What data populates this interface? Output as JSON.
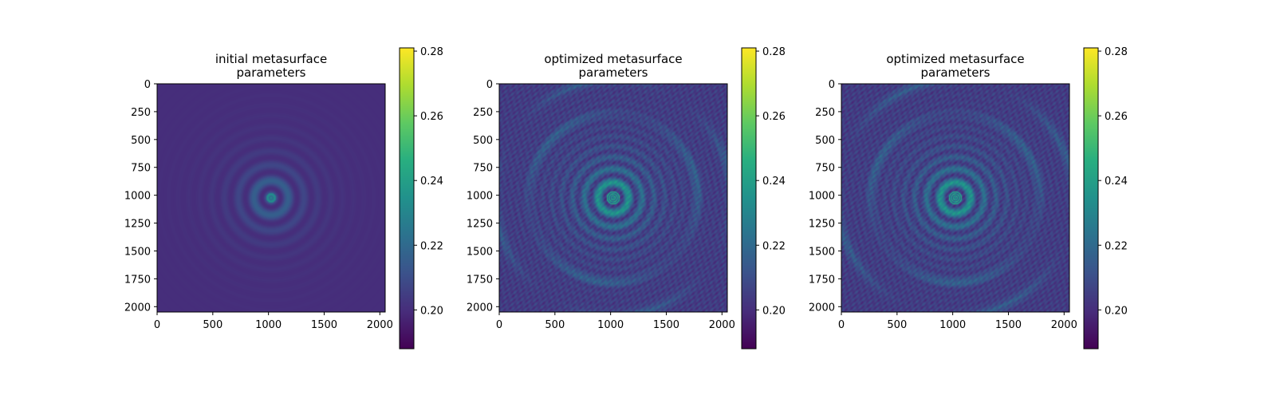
{
  "chart_data": [
    {
      "type": "heatmap",
      "title_lines": [
        "initial metasurface",
        "parameters"
      ],
      "x_ticks": [
        0,
        500,
        1000,
        1500,
        2000
      ],
      "y_ticks": [
        0,
        250,
        500,
        750,
        1000,
        1250,
        1500,
        1750,
        2000
      ],
      "xlim": [
        0,
        2048
      ],
      "ylim": [
        2048,
        0
      ],
      "colormap": "viridis",
      "colorbar": {
        "range": [
          0.188,
          0.281
        ],
        "ticks": [
          0.2,
          0.22,
          0.24,
          0.26,
          0.28
        ],
        "tick_labels": [
          "0.20",
          "0.22",
          "0.24",
          "0.26",
          "0.28"
        ]
      },
      "pattern": "concentric rings centered at (1024, 1024) on uniform background ~0.20"
    },
    {
      "type": "heatmap",
      "title_lines": [
        "optimized metasurface",
        "parameters"
      ],
      "x_ticks": [
        0,
        500,
        1000,
        1500,
        2000
      ],
      "y_ticks": [
        0,
        250,
        500,
        750,
        1000,
        1250,
        1500,
        1750,
        2000
      ],
      "xlim": [
        0,
        2048
      ],
      "ylim": [
        2048,
        0
      ],
      "colormap": "viridis",
      "colorbar": {
        "range": [
          0.188,
          0.281
        ],
        "ticks": [
          0.2,
          0.22,
          0.24,
          0.26,
          0.28
        ],
        "tick_labels": [
          "0.20",
          "0.22",
          "0.24",
          "0.26",
          "0.28"
        ]
      },
      "pattern": "concentric rings centered at (1024, 1024) with outer ring artifacts and textured background"
    },
    {
      "type": "heatmap",
      "title_lines": [
        "optimized metasurface",
        "parameters"
      ],
      "x_ticks": [
        0,
        500,
        1000,
        1500,
        2000
      ],
      "y_ticks": [
        0,
        250,
        500,
        750,
        1000,
        1250,
        1500,
        1750,
        2000
      ],
      "xlim": [
        0,
        2048
      ],
      "ylim": [
        2048,
        0
      ],
      "colormap": "viridis",
      "colorbar": {
        "range": [
          0.188,
          0.281
        ],
        "ticks": [
          0.2,
          0.22,
          0.24,
          0.26,
          0.28
        ],
        "tick_labels": [
          "0.20",
          "0.22",
          "0.24",
          "0.26",
          "0.28"
        ]
      },
      "pattern": "concentric rings centered at (1024, 1024) with outer ring artifacts and textured background"
    }
  ]
}
